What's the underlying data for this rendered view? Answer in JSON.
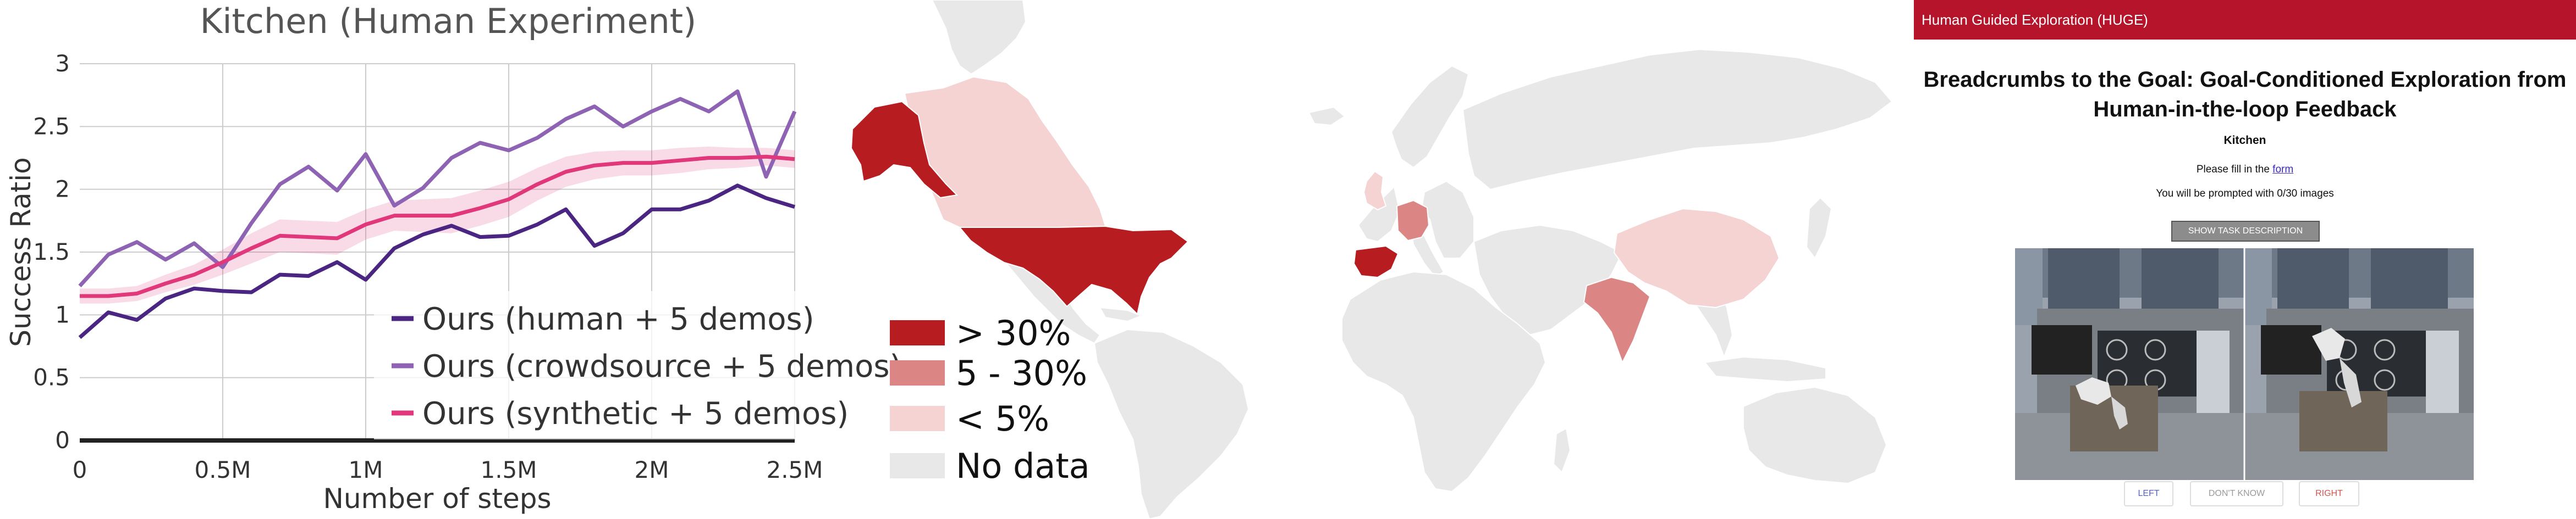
{
  "chart_data": {
    "type": "line",
    "title": "Kitchen (Human Experiment)",
    "xlabel": "Number of steps",
    "ylabel": "Success Ratio",
    "xlim": [
      0,
      2500000
    ],
    "ylim": [
      0,
      3
    ],
    "xticks": [
      0,
      500000,
      1000000,
      1500000,
      2000000,
      2500000
    ],
    "xtick_labels": [
      "0",
      "0.5M",
      "1M",
      "1.5M",
      "2M",
      "2.5M"
    ],
    "yticks": [
      0,
      0.5,
      1,
      1.5,
      2,
      2.5,
      3
    ],
    "ytick_labels": [
      "0",
      "0.5",
      "1",
      "1.5",
      "2",
      "2.5",
      "3"
    ],
    "grid": true,
    "legend_position": "lower-right",
    "series": [
      {
        "name": "Ours (human + 5 demos)",
        "color": "#4a2582",
        "x": [
          0,
          100000,
          200000,
          300000,
          400000,
          500000,
          600000,
          700000,
          800000,
          900000,
          1000000,
          1100000,
          1200000,
          1300000,
          1400000,
          1500000,
          1600000,
          1700000,
          1800000,
          1900000,
          2000000,
          2100000,
          2200000,
          2300000,
          2400000,
          2500000
        ],
        "y": [
          0.82,
          1.02,
          0.96,
          1.13,
          1.21,
          1.19,
          1.18,
          1.32,
          1.31,
          1.42,
          1.28,
          1.53,
          1.64,
          1.71,
          1.62,
          1.63,
          1.72,
          1.84,
          1.55,
          1.65,
          1.84,
          1.84,
          1.91,
          2.03,
          1.93,
          1.86
        ]
      },
      {
        "name": "Ours (crowdsource + 5 demos)",
        "color": "#8e63b4",
        "x": [
          0,
          100000,
          200000,
          300000,
          400000,
          500000,
          600000,
          700000,
          800000,
          900000,
          1000000,
          1100000,
          1200000,
          1300000,
          1400000,
          1500000,
          1600000,
          1700000,
          1800000,
          1900000,
          2000000,
          2100000,
          2200000,
          2300000,
          2400000,
          2500000
        ],
        "y": [
          1.23,
          1.48,
          1.58,
          1.44,
          1.57,
          1.38,
          1.73,
          2.04,
          2.18,
          1.99,
          2.28,
          1.87,
          2.01,
          2.25,
          2.37,
          2.31,
          2.41,
          2.56,
          2.66,
          2.5,
          2.62,
          2.72,
          2.62,
          2.78,
          2.1,
          2.62
        ]
      },
      {
        "name": "Ours (synthetic + 5 demos)",
        "color": "#e0387a",
        "x": [
          0,
          100000,
          200000,
          300000,
          400000,
          500000,
          600000,
          700000,
          800000,
          900000,
          1000000,
          1100000,
          1200000,
          1300000,
          1400000,
          1500000,
          1600000,
          1700000,
          1800000,
          1900000,
          2000000,
          2100000,
          2200000,
          2300000,
          2400000,
          2500000
        ],
        "y": [
          1.15,
          1.15,
          1.17,
          1.25,
          1.32,
          1.42,
          1.53,
          1.63,
          1.62,
          1.61,
          1.72,
          1.79,
          1.79,
          1.79,
          1.85,
          1.92,
          2.04,
          2.14,
          2.19,
          2.21,
          2.21,
          2.23,
          2.25,
          2.25,
          2.26,
          2.24
        ],
        "band_width": [
          0.06,
          0.06,
          0.06,
          0.07,
          0.08,
          0.1,
          0.12,
          0.13,
          0.13,
          0.13,
          0.12,
          0.12,
          0.13,
          0.14,
          0.14,
          0.14,
          0.13,
          0.12,
          0.11,
          0.1,
          0.1,
          0.1,
          0.09,
          0.08,
          0.07,
          0.07
        ]
      }
    ]
  },
  "map": {
    "legend": [
      {
        "label": "> 30%",
        "color": "#b71c21"
      },
      {
        "label": "5 - 30%",
        "color": "#dc8585"
      },
      {
        "label": "< 5%",
        "color": "#f5d3d3"
      },
      {
        "label": "No data",
        "color": "#e8e8e8"
      }
    ],
    "regions": [
      {
        "name": "alaska",
        "category": "> 30%"
      },
      {
        "name": "usa",
        "category": "> 30%"
      },
      {
        "name": "spain",
        "category": "> 30%"
      },
      {
        "name": "germany",
        "category": "5 - 30%"
      },
      {
        "name": "india",
        "category": "5 - 30%"
      },
      {
        "name": "canada",
        "category": "< 5%"
      },
      {
        "name": "uk",
        "category": "< 5%"
      },
      {
        "name": "china",
        "category": "< 5%"
      }
    ]
  },
  "ui": {
    "header": "Human Guided Exploration (HUGE)",
    "title": "Breadcrumbs to the Goal: Goal-Conditioned Exploration from Human-in-the-loop Feedback",
    "subtitle": "Kitchen",
    "fill_prefix": "Please fill in the ",
    "fill_link": "form",
    "prompt": "You will be prompted with 0/30 images",
    "task_button": "SHOW TASK DESCRIPTION",
    "left_button": "LEFT",
    "dont_know_button": "DON'T KNOW",
    "right_button": "RIGHT",
    "left_color": "#5560c8",
    "dont_know_color": "#9a9a9a",
    "right_color": "#d9534f"
  }
}
